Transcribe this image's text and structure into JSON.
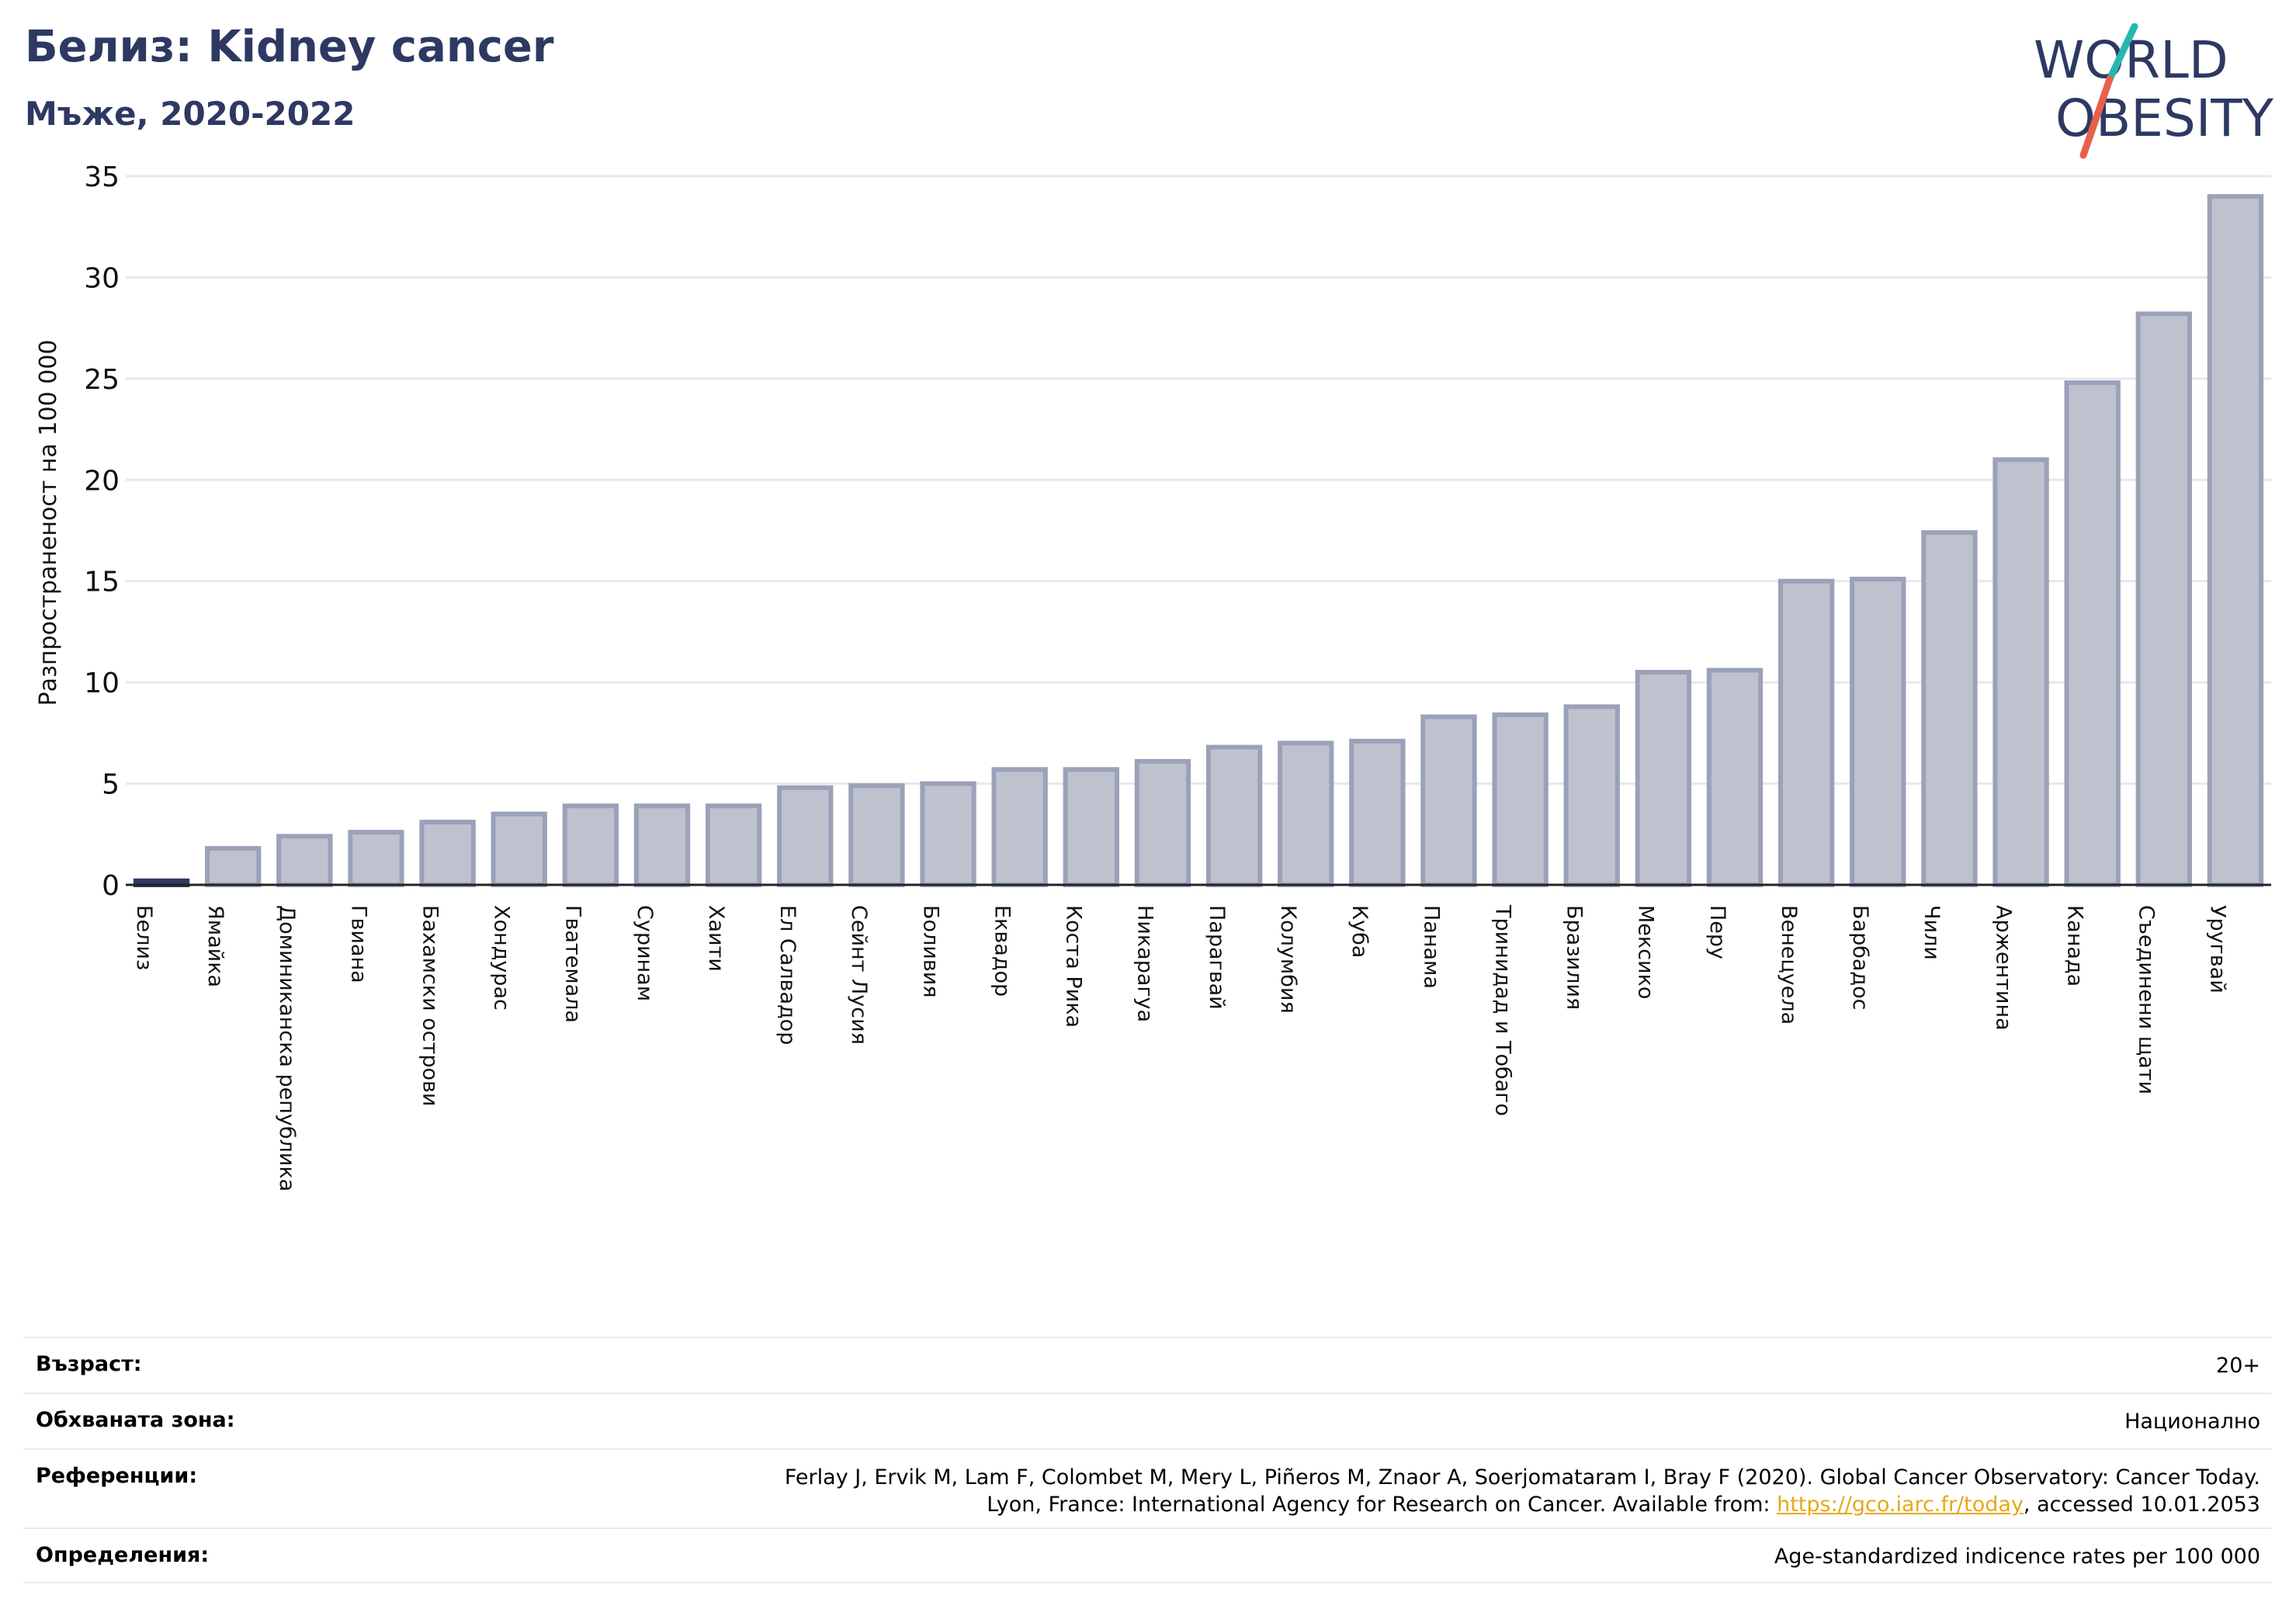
{
  "header": {
    "title": "Белиз: Kidney cancer",
    "subtitle": "Мъже, 2020-2022"
  },
  "logo": {
    "line1": "WORLD",
    "line2": "OBESITY",
    "colors": {
      "text": "#2d3963",
      "slash_top": "#2ab6b0",
      "slash_bottom": "#e8604c"
    }
  },
  "chart_data": {
    "type": "bar",
    "ylabel": "Разпространеност  на 100 000",
    "xlabel": "",
    "ylim": [
      0,
      35
    ],
    "yticks": [
      0,
      5,
      10,
      15,
      20,
      25,
      30,
      35
    ],
    "grid": true,
    "highlight_category": "Белиз",
    "colors": {
      "bar": "#bec2cf",
      "bar_edge": "#9ba1b8",
      "highlight": "#2d3963",
      "grid": "#e6e7ee"
    },
    "categories": [
      "Белиз",
      "Ямайка",
      "Доминиканска република",
      "Гвиана",
      "Бахамски острови",
      "Хондурас",
      "Гватемала",
      "Суринам",
      "Хаити",
      "Ел Салвадор",
      "Сейнт Лусия",
      "Боливия",
      "Еквадор",
      "Коста Рика",
      "Никарагуа",
      "Парагвай",
      "Колумбия",
      "Куба",
      "Панама",
      "Тринидад и Тобаго",
      "Бразилия",
      "Мексико",
      "Перу",
      "Венецуела",
      "Барбадос",
      "Чили",
      "Аржентина",
      "Канада",
      "Съединени щати",
      "Уругвай"
    ],
    "values": [
      0.2,
      1.8,
      2.4,
      2.6,
      3.1,
      3.5,
      3.9,
      3.9,
      3.9,
      4.8,
      4.9,
      5.0,
      5.7,
      5.7,
      6.1,
      6.8,
      7.0,
      7.1,
      8.3,
      8.4,
      8.8,
      10.5,
      10.6,
      15.0,
      15.1,
      17.4,
      21.0,
      24.8,
      28.2,
      34.0
    ]
  },
  "info": {
    "rows": [
      {
        "label": "Възраст:",
        "value": "20+"
      },
      {
        "label": "Обхваната зона:",
        "value": "Национално"
      },
      {
        "label": "Референции:",
        "value_line1": "Ferlay J, Ervik M, Lam F, Colombet M, Mery L, Piñeros M, Znaor A, Soerjomataram I, Bray F (2020). Global Cancer Observatory: Cancer Today.",
        "value_line2_pre": "Lyon, France: International Agency for Research on Cancer. Available from: ",
        "value_link": "https://gco.iarc.fr/today",
        "value_line2_post": ", accessed 10.01.2053"
      },
      {
        "label": "Определения:",
        "value": "Age-standardized indicence rates per 100 000"
      }
    ]
  }
}
